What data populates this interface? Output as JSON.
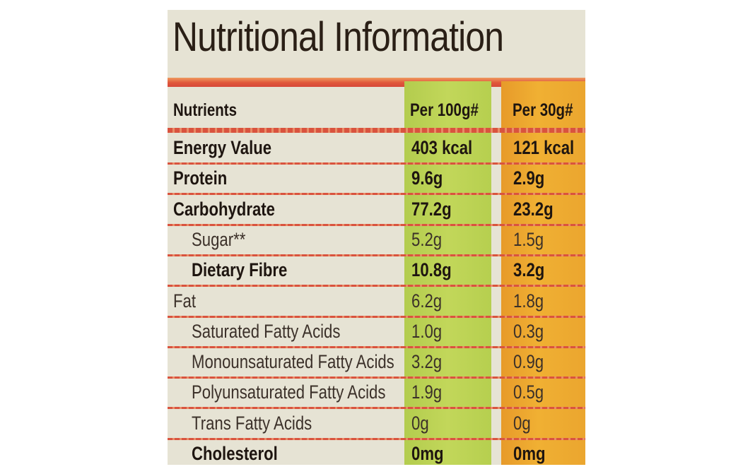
{
  "title": "Nutritional Information",
  "table": {
    "headers": {
      "nutrients": "Nutrients",
      "per_100g": "Per 100g#",
      "per_30g": "Per 30g#"
    },
    "rows": [
      {
        "name": "Energy Value",
        "per_100g": "403 kcal",
        "per_30g": "121 kcal",
        "bold": true,
        "indent": false
      },
      {
        "name": "Protein",
        "per_100g": "9.6g",
        "per_30g": "2.9g",
        "bold": true,
        "indent": false
      },
      {
        "name": "Carbohydrate",
        "per_100g": "77.2g",
        "per_30g": "23.2g",
        "bold": true,
        "indent": false
      },
      {
        "name": "Sugar**",
        "per_100g": "5.2g",
        "per_30g": "1.5g",
        "bold": false,
        "indent": true
      },
      {
        "name": "Dietary Fibre",
        "per_100g": "10.8g",
        "per_30g": "3.2g",
        "bold": true,
        "indent": true
      },
      {
        "name": "Fat",
        "per_100g": "6.2g",
        "per_30g": "1.8g",
        "bold": false,
        "indent": false
      },
      {
        "name": "Saturated Fatty Acids",
        "per_100g": "1.0g",
        "per_30g": "0.3g",
        "bold": false,
        "indent": true
      },
      {
        "name": "Monounsaturated Fatty Acids",
        "per_100g": "3.2g",
        "per_30g": "0.9g",
        "bold": false,
        "indent": true
      },
      {
        "name": "Polyunsaturated Fatty Acids",
        "per_100g": "1.9g",
        "per_30g": "0.5g",
        "bold": false,
        "indent": true
      },
      {
        "name": "Trans Fatty Acids",
        "per_100g": "0g",
        "per_30g": "0g",
        "bold": false,
        "indent": true
      },
      {
        "name": "Cholesterol",
        "per_100g": "0mg",
        "per_30g": "0mg",
        "bold": true,
        "indent": true
      }
    ]
  },
  "colors": {
    "background": "#e6e3d4",
    "text": "#1e1510",
    "per_100g_column": "#bcd455",
    "per_30g_column": "#eea72f",
    "rule_lines": "#d9533e"
  }
}
